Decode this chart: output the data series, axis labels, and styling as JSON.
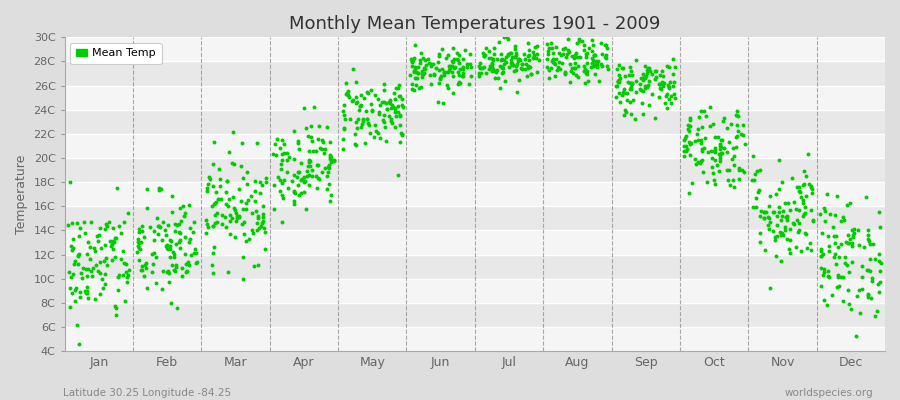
{
  "title": "Monthly Mean Temperatures 1901 - 2009",
  "ylabel": "Temperature",
  "xlabel_months": [
    "Jan",
    "Feb",
    "Mar",
    "Apr",
    "May",
    "Jun",
    "Jul",
    "Aug",
    "Sep",
    "Oct",
    "Nov",
    "Dec"
  ],
  "ylim": [
    4,
    30
  ],
  "yticks": [
    4,
    6,
    8,
    10,
    12,
    14,
    16,
    18,
    20,
    22,
    24,
    26,
    28,
    30
  ],
  "ytick_labels": [
    "4C",
    "6C",
    "8C",
    "10C",
    "12C",
    "14C",
    "16C",
    "18C",
    "20C",
    "22C",
    "24C",
    "26C",
    "28C",
    "30C"
  ],
  "dot_color": "#00CC00",
  "dot_size": 8,
  "outer_bg": "#DEDEDE",
  "stripe_light": "#F5F5F5",
  "stripe_dark": "#E8E8E8",
  "dashed_color": "#888888",
  "legend_label": "Mean Temp",
  "subtitle_left": "Latitude 30.25 Longitude -84.25",
  "subtitle_right": "worldspecies.org",
  "mean_temps": [
    11.2,
    12.5,
    16.0,
    19.5,
    23.8,
    27.2,
    28.1,
    28.0,
    26.0,
    21.0,
    15.5,
    11.8
  ],
  "std_temps": [
    2.5,
    2.3,
    2.2,
    1.8,
    1.5,
    0.9,
    0.9,
    0.9,
    1.2,
    1.8,
    2.2,
    2.5
  ],
  "n_years": 109
}
